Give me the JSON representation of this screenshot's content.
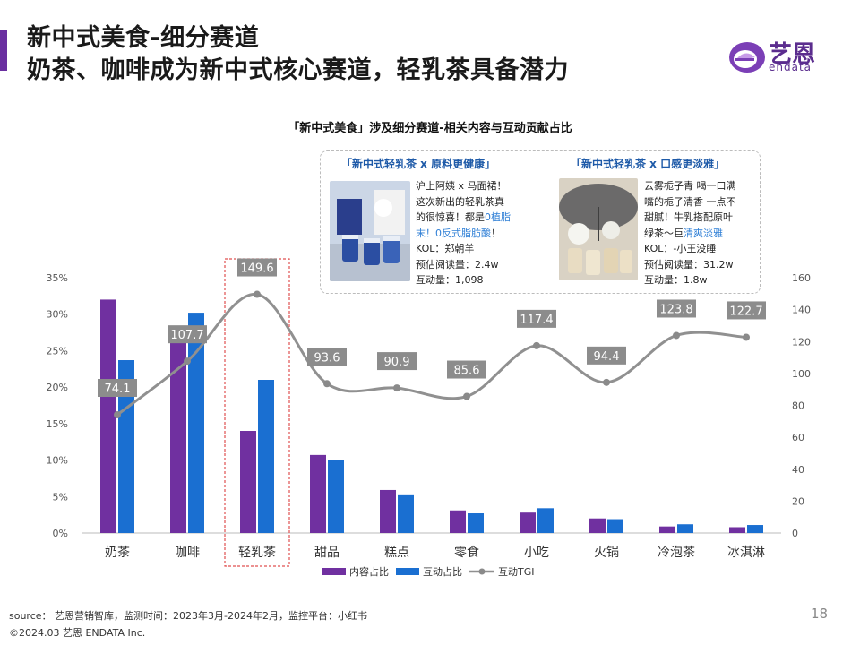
{
  "header": {
    "title_line1": "新中式美食-细分赛道",
    "title_line2": "奶茶、咖啡成为新中式核心赛道，轻乳茶具备潜力",
    "logo_cn": "艺恩",
    "logo_en": "endata"
  },
  "colors": {
    "accent": "#6a2fa0",
    "content_bar": "#7030a0",
    "interaction_bar": "#1a6fd1",
    "tgi_line": "#909090",
    "tgi_label_bg": "#8c8c8c",
    "highlight_text": "#2f7fd6",
    "highlight_box": "#e05050"
  },
  "callout": {
    "card1": {
      "title": "「新中式轻乳茶 x 原料更健康」",
      "lines": [
        "沪上阿姨 x 马面裙！",
        "这次新出的轻乳茶真",
        "的很惊喜！都是"
      ],
      "hl1": "0植脂",
      "line4_hl": "末！0反式脂肪酸",
      "line4_tail": "！",
      "kol": "KOL：郑朝羊",
      "reads": "预估阅读量：2.4w",
      "interactions": "互动量：1,098"
    },
    "card2": {
      "title": "「新中式轻乳茶 x 口感更淡雅」",
      "lines": [
        "云雾栀子青 喝一口满",
        "嘴的栀子清香 一点不",
        "甜腻！牛乳搭配原叶"
      ],
      "line4_head": "绿茶～巨",
      "line4_hl": "清爽淡雅",
      "kol": "KOL：-小王没睡",
      "reads": "预估阅读量：31.2w",
      "interactions": "互动量：1.8w"
    }
  },
  "chart_data": {
    "type": "bar",
    "title": "「新中式美食」涉及细分赛道-相关内容与互动贡献占比",
    "categories": [
      "奶茶",
      "咖啡",
      "轻乳茶",
      "甜品",
      "糕点",
      "零食",
      "小吃",
      "火锅",
      "冷泡茶",
      "冰淇淋"
    ],
    "series": [
      {
        "name": "内容占比",
        "axis": "left",
        "values": [
          32.0,
          28.0,
          14.0,
          10.7,
          5.9,
          3.1,
          2.8,
          2.0,
          0.9,
          0.8
        ]
      },
      {
        "name": "互动占比",
        "axis": "left",
        "values": [
          23.7,
          30.2,
          21.0,
          10.0,
          5.3,
          2.7,
          3.4,
          1.9,
          1.2,
          1.1
        ]
      },
      {
        "name": "互动TGI",
        "axis": "right",
        "type": "line",
        "values": [
          74.1,
          107.7,
          149.6,
          93.6,
          90.9,
          85.6,
          117.4,
          94.4,
          123.8,
          122.7
        ]
      }
    ],
    "y_left": {
      "min": 0,
      "max": 35,
      "step": 5,
      "ticks": [
        "0%",
        "5%",
        "10%",
        "15%",
        "20%",
        "25%",
        "30%",
        "35%"
      ]
    },
    "y_right": {
      "min": 0,
      "max": 160,
      "step": 20,
      "ticks": [
        "0",
        "20",
        "40",
        "60",
        "80",
        "100",
        "120",
        "140",
        "160"
      ]
    },
    "highlight_category": "轻乳茶",
    "legend": {
      "position": "bottom",
      "items": [
        "内容占比",
        "互动占比",
        "互动TGI"
      ]
    },
    "grid": false
  },
  "footer": {
    "source": "source： 艺恩营销智库，监测时间：2023年3月-2024年2月，监控平台：小红书",
    "copyright": "©2024.03  艺恩 ENDATA Inc.",
    "page_number": "18"
  }
}
